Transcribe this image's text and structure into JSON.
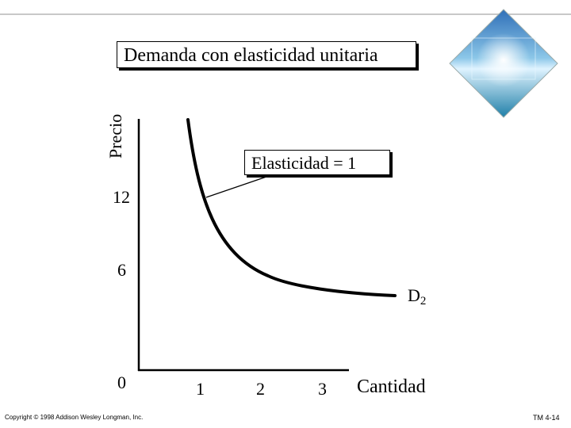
{
  "chart_data": {
    "type": "line",
    "title": "Demanda con elasticidad unitaria",
    "xlabel": "Cantidad",
    "ylabel": "Precio",
    "x_ticks": [
      "1",
      "2",
      "3"
    ],
    "y_ticks": [
      "12",
      "6",
      "0"
    ],
    "series": [
      {
        "name": "D2",
        "curve": "unit-elastic hyperbola",
        "x": [
          0.8,
          0.9,
          1.0,
          1.25,
          1.5,
          1.75,
          2.0,
          2.5,
          3.0,
          3.5,
          4.0
        ],
        "y": [
          29,
          20,
          12,
          8.5,
          6,
          4.2,
          3.5,
          2.8,
          2.3,
          2.0,
          1.8
        ]
      }
    ],
    "annotation": "Elasticidad = 1",
    "series_label": {
      "main": "D",
      "sub": "2"
    },
    "grid": false
  },
  "footer": {
    "copyright": "Copyright © 1998 Addison Wesley Longman, Inc.",
    "slide_id": "TM 4-14"
  },
  "colors": {
    "axis": "#000000",
    "curve": "#000000",
    "rule": "#c8c8c8"
  }
}
